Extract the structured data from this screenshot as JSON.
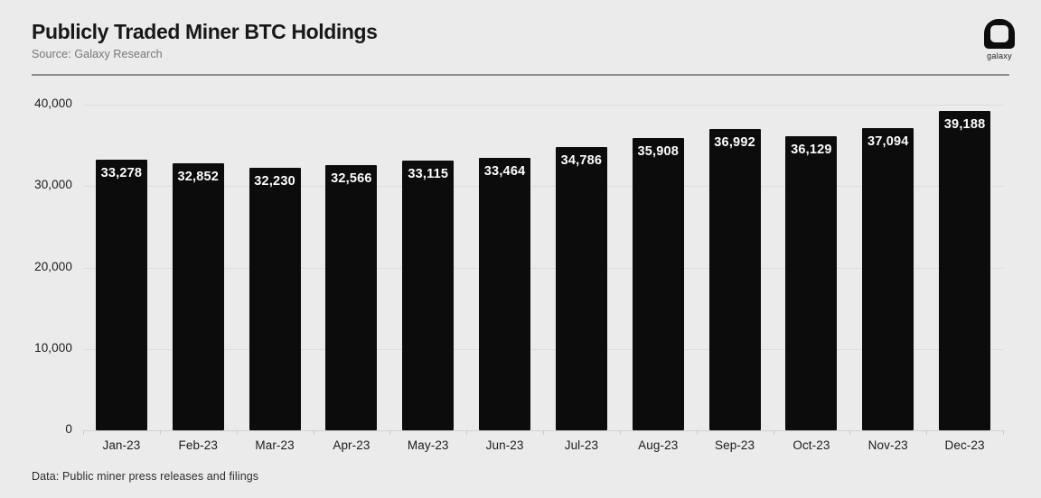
{
  "header": {
    "title": "Publicly Traded Miner BTC Holdings",
    "source": "Source: Galaxy Research"
  },
  "logo": {
    "label": "galaxy"
  },
  "chart_data": {
    "type": "bar",
    "title": "Publicly Traded Miner BTC Holdings",
    "categories": [
      "Jan-23",
      "Feb-23",
      "Mar-23",
      "Apr-23",
      "May-23",
      "Jun-23",
      "Jul-23",
      "Aug-23",
      "Sep-23",
      "Oct-23",
      "Nov-23",
      "Dec-23"
    ],
    "values": [
      33278,
      32852,
      32230,
      32566,
      33115,
      33464,
      34786,
      35908,
      36992,
      36129,
      37094,
      39188
    ],
    "value_labels": [
      "33,278",
      "32,852",
      "32,230",
      "32,566",
      "33,115",
      "33,464",
      "34,786",
      "35,908",
      "36,992",
      "36,129",
      "37,094",
      "39,188"
    ],
    "xlabel": "",
    "ylabel": "",
    "ylim": [
      0,
      40000
    ],
    "yticks": [
      0,
      10000,
      20000,
      30000,
      40000
    ],
    "ytick_labels": [
      "0",
      "10,000",
      "20,000",
      "30,000",
      "40,000"
    ],
    "grid": true,
    "legend": "none",
    "bar_color": "#0c0c0c"
  },
  "footer": {
    "note": "Data: Public miner press releases and filings"
  },
  "colors": {
    "background": "#ebebeb",
    "bar": "#0c0c0c",
    "grid": "#dcdcdc",
    "divider": "#8d8d8d",
    "title_text": "#181818",
    "subtitle_text": "#767676",
    "axis_text": "#1c1c1c",
    "value_text": "#fdfdfd"
  }
}
